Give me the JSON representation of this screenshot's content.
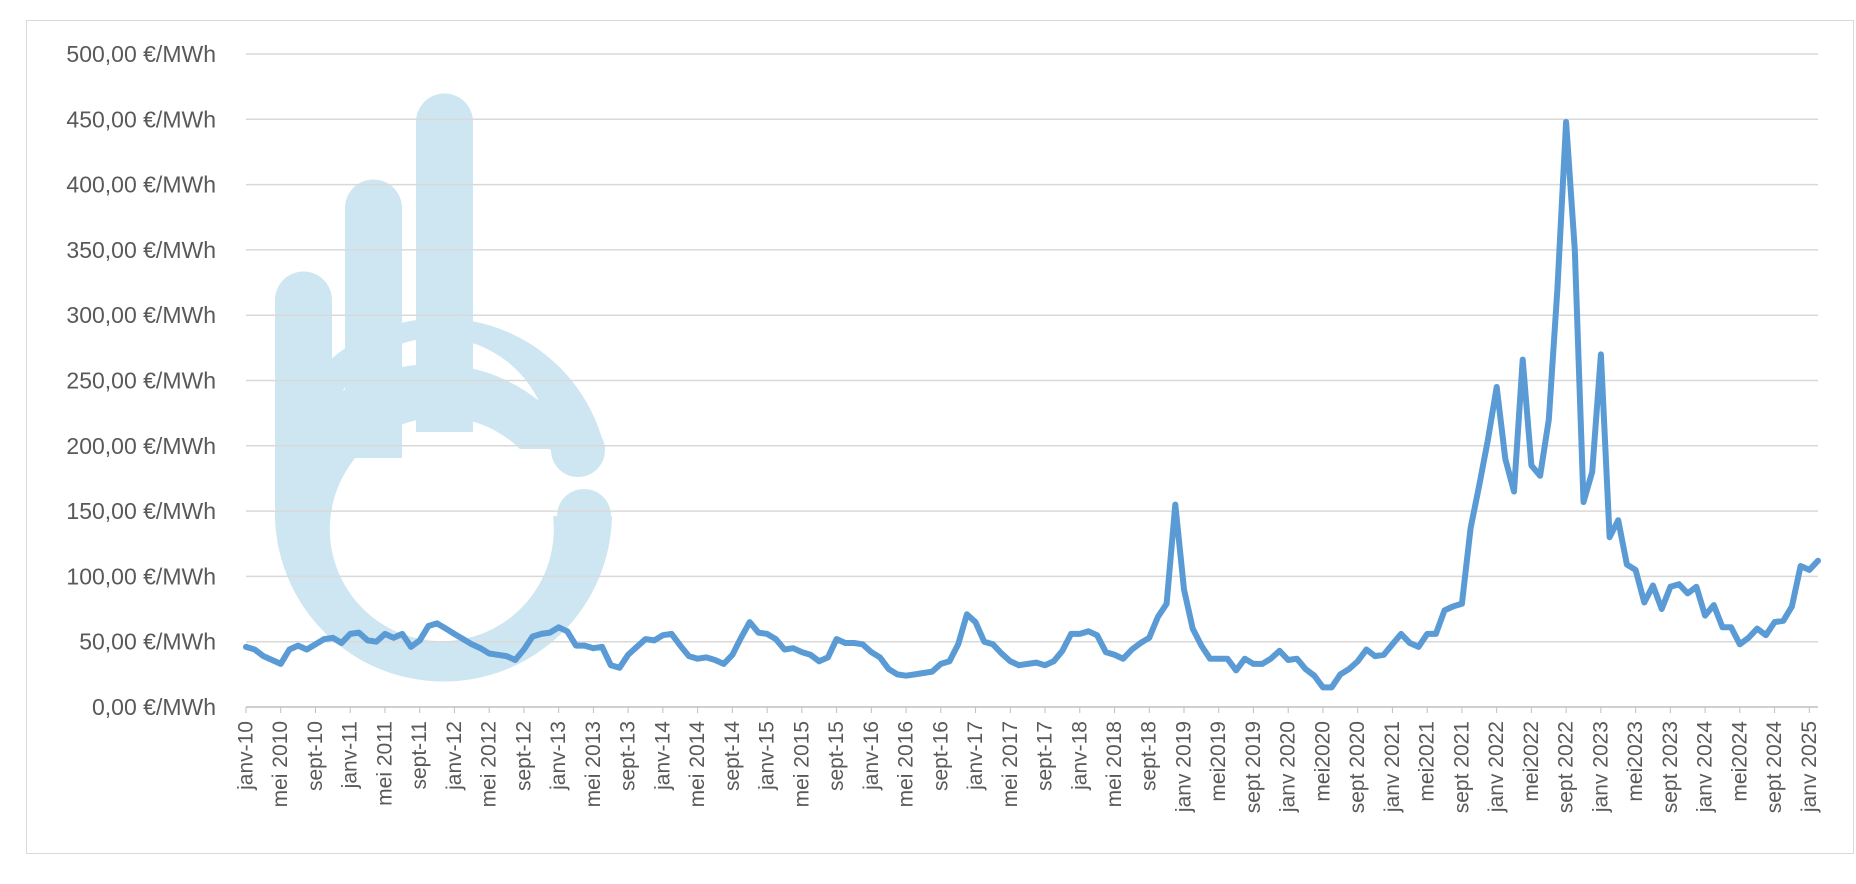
{
  "chart_data": {
    "type": "line",
    "title": "",
    "xlabel": "",
    "ylabel": "",
    "ylim": [
      0,
      500
    ],
    "y_ticks": [
      0,
      50,
      100,
      150,
      200,
      250,
      300,
      350,
      400,
      450,
      500
    ],
    "y_tick_labels": [
      "0,00 €/MWh",
      "50,00 €/MWh",
      "100,00 €/MWh",
      "150,00 €/MWh",
      "200,00 €/MWh",
      "250,00 €/MWh",
      "300,00 €/MWh",
      "350,00 €/MWh",
      "400,00 €/MWh",
      "450,00 €/MWh",
      "500,00 €/MWh"
    ],
    "x_start_month": "2010-01",
    "x_tick_every_months": 4,
    "x_tick_labels": [
      "janv-10",
      "mei 2010",
      "sept-10",
      "janv-11",
      "mei 2011",
      "sept-11",
      "janv-12",
      "mei 2012",
      "sept-12",
      "janv-13",
      "mei 2013",
      "sept-13",
      "janv-14",
      "mei 2014",
      "sept-14",
      "janv-15",
      "mei 2015",
      "sept-15",
      "janv-16",
      "mei 2016",
      "sept-16",
      "janv-17",
      "mei 2017",
      "sept-17",
      "janv-18",
      "mei 2018",
      "sept-18",
      "janv 2019",
      "mei2019",
      "sept 2019",
      "janv 2020",
      "mei2020",
      "sept 2020",
      "janv 2021",
      "mei2021",
      "sept 2021",
      "janv 2022",
      "mei2022",
      "sept 2022",
      "janv 2023",
      "mei2023",
      "sept 2023",
      "janv 2024",
      "mei2024",
      "sept 2024",
      "janv 2025"
    ],
    "grid": true,
    "legend": "none",
    "series": [
      {
        "color": "#5b9bd5",
        "values": [
          46,
          44,
          39,
          36,
          33,
          44,
          47,
          44,
          48,
          52,
          53,
          49,
          56,
          57,
          51,
          50,
          56,
          53,
          56,
          46,
          51,
          62,
          64,
          60,
          56,
          52,
          48,
          45,
          41,
          40,
          39,
          36,
          44,
          54,
          56,
          57,
          61,
          58,
          47,
          47,
          45,
          46,
          32,
          30,
          40,
          46,
          52,
          51,
          55,
          56,
          47,
          39,
          37,
          38,
          36,
          33,
          40,
          53,
          65,
          57,
          56,
          52,
          44,
          45,
          42,
          40,
          35,
          38,
          52,
          49,
          49,
          48,
          42,
          38,
          29,
          25,
          24,
          25,
          26,
          27,
          33,
          35,
          48,
          71,
          65,
          50,
          48,
          41,
          35,
          32,
          33,
          34,
          32,
          35,
          43,
          56,
          56,
          58,
          55,
          42,
          40,
          37,
          44,
          49,
          53,
          69,
          79,
          155,
          90,
          60,
          47,
          37,
          37,
          37,
          28,
          37,
          33,
          33,
          37,
          43,
          36,
          37,
          29,
          24,
          15,
          15,
          25,
          29,
          35,
          44,
          39,
          40,
          48,
          56,
          49,
          46,
          56,
          56,
          74,
          77,
          79,
          137,
          170,
          205,
          245,
          190,
          165,
          266,
          185,
          177,
          220,
          320,
          448,
          350,
          157,
          180,
          270,
          130,
          143,
          109,
          105,
          80,
          93,
          75,
          92,
          94,
          87,
          92,
          70,
          78,
          61,
          61,
          48,
          53,
          60,
          55,
          65,
          66,
          77,
          108,
          105,
          112
        ]
      }
    ]
  }
}
